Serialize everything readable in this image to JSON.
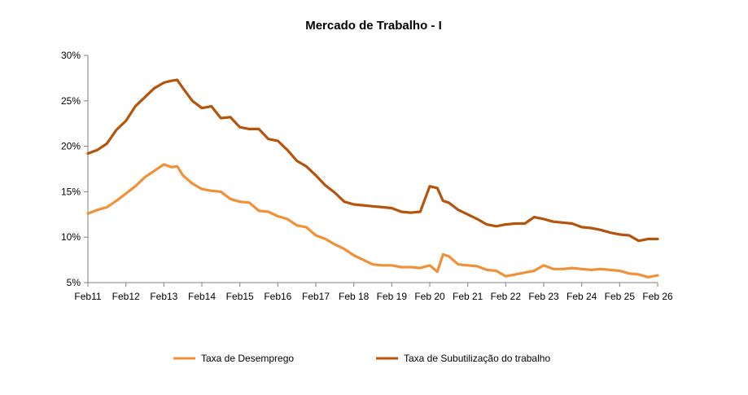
{
  "chart_data": {
    "type": "line",
    "title": "Mercado de Trabalho  -  I",
    "xlabel": "",
    "ylabel": "",
    "x_ticks": [
      "Feb11",
      "Feb12",
      "Feb13",
      "Feb14",
      "Feb15",
      "Feb16",
      "Feb17",
      "Feb 18",
      "Feb 19",
      "Feb 20",
      "Feb 21",
      "Feb 22",
      "Feb 23",
      "Feb 24",
      "Feb 25",
      "Feb 26"
    ],
    "y_ticks": [
      "5%",
      "10%",
      "15%",
      "20%",
      "25%",
      "30%"
    ],
    "xlim": [
      2011.0,
      2026.0
    ],
    "ylim": [
      5,
      30
    ],
    "grid": false,
    "legend_position": "bottom",
    "series": [
      {
        "name": "Taxa de Desemprego",
        "color": "#F0913A",
        "x": [
          2011.0,
          2011.25,
          2011.5,
          2011.75,
          2012.0,
          2012.25,
          2012.5,
          2012.75,
          2013.0,
          2013.2,
          2013.35,
          2013.5,
          2013.75,
          2014.0,
          2014.25,
          2014.5,
          2014.75,
          2015.0,
          2015.25,
          2015.5,
          2015.75,
          2016.0,
          2016.25,
          2016.5,
          2016.75,
          2017.0,
          2017.25,
          2017.5,
          2017.75,
          2018.0,
          2018.25,
          2018.5,
          2018.75,
          2019.0,
          2019.25,
          2019.5,
          2019.75,
          2020.0,
          2020.2,
          2020.35,
          2020.5,
          2020.75,
          2021.0,
          2021.25,
          2021.5,
          2021.75,
          2022.0,
          2022.25,
          2022.5,
          2022.75,
          2023.0,
          2023.25,
          2023.5,
          2023.75,
          2024.0,
          2024.25,
          2024.5,
          2024.75,
          2025.0,
          2025.25,
          2025.5,
          2025.75,
          2026.0
        ],
        "y": [
          12.6,
          13.0,
          13.3,
          14.0,
          14.8,
          15.6,
          16.6,
          17.3,
          18.0,
          17.7,
          17.8,
          16.8,
          15.9,
          15.3,
          15.1,
          15.0,
          14.2,
          13.9,
          13.8,
          12.9,
          12.8,
          12.3,
          12.0,
          11.3,
          11.1,
          10.2,
          9.8,
          9.2,
          8.7,
          8.0,
          7.5,
          7.0,
          6.9,
          6.9,
          6.7,
          6.7,
          6.6,
          6.9,
          6.2,
          8.1,
          7.9,
          7.0,
          6.9,
          6.8,
          6.4,
          6.3,
          5.7,
          5.9,
          6.1,
          6.3,
          6.9,
          6.5,
          6.5,
          6.6,
          6.5,
          6.4,
          6.5,
          6.4,
          6.3,
          6.0,
          5.9,
          5.6,
          5.8
        ]
      },
      {
        "name": "Taxa de Subutilização do trabalho",
        "color": "#B5540C",
        "x": [
          2011.0,
          2011.25,
          2011.5,
          2011.75,
          2012.0,
          2012.25,
          2012.5,
          2012.75,
          2013.0,
          2013.2,
          2013.35,
          2013.5,
          2013.75,
          2014.0,
          2014.25,
          2014.5,
          2014.75,
          2015.0,
          2015.25,
          2015.5,
          2015.75,
          2016.0,
          2016.25,
          2016.5,
          2016.75,
          2017.0,
          2017.25,
          2017.5,
          2017.75,
          2018.0,
          2018.25,
          2018.5,
          2018.75,
          2019.0,
          2019.25,
          2019.5,
          2019.75,
          2020.0,
          2020.2,
          2020.35,
          2020.5,
          2020.75,
          2021.0,
          2021.25,
          2021.5,
          2021.75,
          2022.0,
          2022.25,
          2022.5,
          2022.75,
          2023.0,
          2023.25,
          2023.5,
          2023.75,
          2024.0,
          2024.25,
          2024.5,
          2024.75,
          2025.0,
          2025.25,
          2025.5,
          2025.75,
          2026.0
        ],
        "y": [
          19.2,
          19.6,
          20.3,
          21.8,
          22.8,
          24.4,
          25.4,
          26.4,
          27.0,
          27.2,
          27.3,
          26.4,
          25.0,
          24.2,
          24.4,
          23.1,
          23.2,
          22.1,
          21.9,
          21.9,
          20.8,
          20.6,
          19.6,
          18.4,
          17.8,
          16.8,
          15.7,
          14.9,
          13.9,
          13.6,
          13.5,
          13.4,
          13.3,
          13.2,
          12.8,
          12.7,
          12.8,
          15.6,
          15.4,
          14.0,
          13.8,
          13.0,
          12.5,
          12.0,
          11.4,
          11.2,
          11.4,
          11.5,
          11.5,
          12.2,
          12.0,
          11.7,
          11.6,
          11.5,
          11.1,
          11.0,
          10.8,
          10.5,
          10.3,
          10.2,
          9.6,
          9.8,
          9.8
        ]
      }
    ]
  }
}
